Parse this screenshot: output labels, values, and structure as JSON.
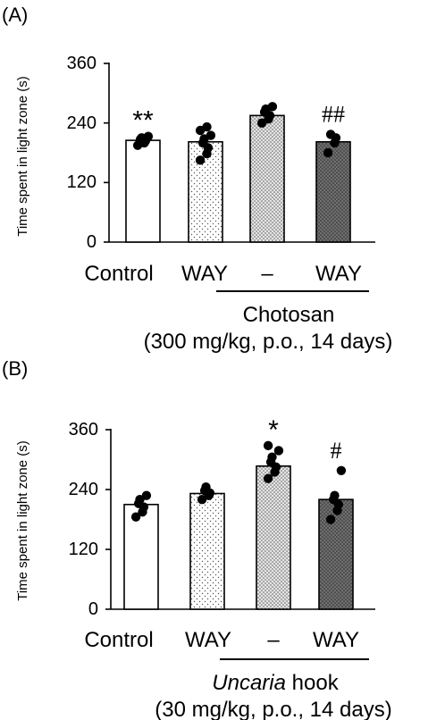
{
  "chart_data": [
    {
      "type": "bar",
      "panel_label": "(A)",
      "ylabel": "Time spent in light zone (s)",
      "ylim": [
        0,
        360
      ],
      "yticks": [
        "0",
        "120",
        "240",
        "360"
      ],
      "categories": [
        "Control",
        "WAY",
        "–",
        "WAY"
      ],
      "values": [
        205,
        202,
        255,
        202
      ],
      "bar_fills": [
        "white",
        "light-dots",
        "dense-dots",
        "dark-dots"
      ],
      "points": [
        [
          195,
          200,
          204,
          207,
          210,
          213
        ],
        [
          165,
          178,
          190,
          200,
          208,
          215,
          225,
          232
        ],
        [
          240,
          248,
          255,
          262,
          268,
          273
        ],
        [
          180,
          200,
          210,
          217
        ]
      ],
      "annotations": [
        "**",
        "",
        "",
        "##"
      ],
      "group_label_line1": "Chotosan",
      "group_label_line2": "(300 mg/kg, p.o., 14 days)"
    },
    {
      "type": "bar",
      "panel_label": "(B)",
      "ylabel": "Time spent in light zone (s)",
      "ylim": [
        0,
        360
      ],
      "yticks": [
        "0",
        "120",
        "240",
        "360"
      ],
      "categories": [
        "Control",
        "WAY",
        "–",
        "WAY"
      ],
      "values": [
        210,
        232,
        287,
        220
      ],
      "bar_fills": [
        "white",
        "light-dots",
        "dense-dots",
        "dark-dots"
      ],
      "points": [
        [
          185,
          195,
          205,
          212,
          220,
          228
        ],
        [
          220,
          228,
          233,
          238,
          245
        ],
        [
          262,
          275,
          285,
          295,
          305,
          318,
          328
        ],
        [
          180,
          198,
          210,
          220,
          228,
          278
        ]
      ],
      "annotations": [
        "",
        "",
        "*",
        "#"
      ],
      "group_label_italic": "Uncaria",
      "group_label_rest": " hook",
      "group_label_line2": "(30 mg/kg, p.o., 14 days)"
    }
  ]
}
